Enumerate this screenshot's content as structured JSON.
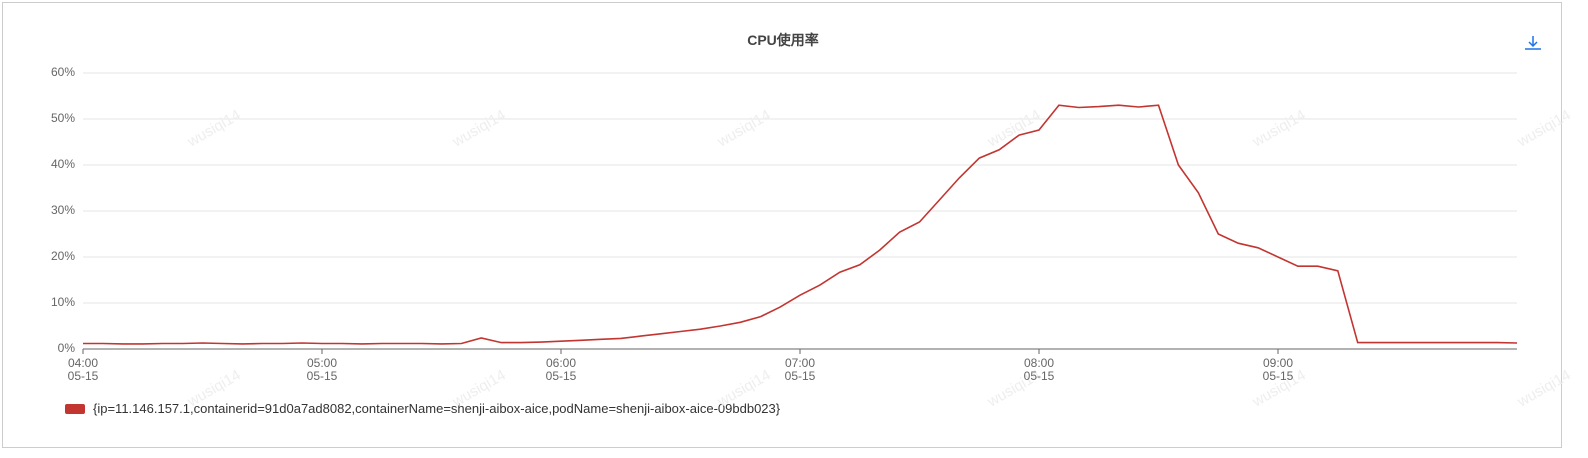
{
  "chart_data": {
    "type": "line",
    "title": "CPU使用率",
    "watermark": "wusiqi14",
    "x": [
      "05-15 04:00",
      "05-15 04:05",
      "05-15 04:10",
      "05-15 04:15",
      "05-15 04:20",
      "05-15 04:25",
      "05-15 04:30",
      "05-15 04:35",
      "05-15 04:40",
      "05-15 04:45",
      "05-15 04:50",
      "05-15 04:55",
      "05-15 05:00",
      "05-15 05:05",
      "05-15 05:10",
      "05-15 05:15",
      "05-15 05:20",
      "05-15 05:25",
      "05-15 05:30",
      "05-15 05:35",
      "05-15 05:40",
      "05-15 05:45",
      "05-15 05:50",
      "05-15 05:55",
      "05-15 06:00",
      "05-15 06:05",
      "05-15 06:10",
      "05-15 06:15",
      "05-15 06:20",
      "05-15 06:25",
      "05-15 06:30",
      "05-15 06:35",
      "05-15 06:40",
      "05-15 06:45",
      "05-15 06:50",
      "05-15 06:55",
      "05-15 07:00",
      "05-15 07:05",
      "05-15 07:10",
      "05-15 07:15",
      "05-15 07:20",
      "05-15 07:25",
      "05-15 07:30",
      "05-15 07:35",
      "05-15 07:40",
      "05-15 07:45",
      "05-15 07:50",
      "05-15 07:55",
      "05-15 08:00",
      "05-15 08:05",
      "05-15 08:10",
      "05-15 08:15",
      "05-15 08:20",
      "05-15 08:25",
      "05-15 08:30",
      "05-15 08:35",
      "05-15 08:40",
      "05-15 08:45",
      "05-15 08:50",
      "05-15 08:55",
      "05-15 09:00",
      "05-15 09:05",
      "05-15 09:10",
      "05-15 09:15",
      "05-15 09:20",
      "05-15 09:25",
      "05-15 09:30",
      "05-15 09:35",
      "05-15 09:40",
      "05-15 09:45",
      "05-15 09:50",
      "05-15 09:55",
      "05-15 10:00"
    ],
    "series": [
      {
        "name": "{ip=11.146.157.1,containerid=91d0a7ad8082,containerName=shenji-aibox-aice,podName=shenji-aibox-aice-09bdb023}",
        "color": "#c23531",
        "values": [
          1.2,
          1.2,
          1.1,
          1.1,
          1.2,
          1.2,
          1.3,
          1.2,
          1.1,
          1.2,
          1.2,
          1.3,
          1.2,
          1.2,
          1.1,
          1.2,
          1.2,
          1.2,
          1.1,
          1.2,
          2.4,
          1.4,
          1.4,
          1.5,
          1.7,
          1.9,
          2.1,
          2.3,
          2.8,
          3.3,
          3.8,
          4.3,
          5,
          5.8,
          7,
          9.1,
          11.7,
          13.9,
          16.7,
          18.3,
          21.5,
          25.4,
          27.6,
          32.4,
          37.2,
          41.5,
          43.3,
          46.5,
          47.6,
          53,
          52.5,
          52.7,
          53,
          52.6,
          53,
          40,
          34,
          25,
          23,
          22,
          20,
          18,
          18,
          17,
          1.4,
          1.4,
          1.4,
          1.4,
          1.4,
          1.4,
          1.4,
          1.4,
          1.3
        ]
      }
    ],
    "xlim": [
      "05-15 04:00",
      "05-15 10:00"
    ],
    "xticks": [
      {
        "value": "05-15 04:00",
        "label": "04:00\n05-15"
      },
      {
        "value": "05-15 05:00",
        "label": "05:00\n05-15"
      },
      {
        "value": "05-15 06:00",
        "label": "06:00\n05-15"
      },
      {
        "value": "05-15 07:00",
        "label": "07:00\n05-15"
      },
      {
        "value": "05-15 08:00",
        "label": "08:00\n05-15"
      },
      {
        "value": "05-15 09:00",
        "label": "09:00\n05-15"
      }
    ],
    "ylim": [
      0,
      60
    ],
    "yticks": [
      {
        "value": 0,
        "label": "0%"
      },
      {
        "value": 10,
        "label": "10%"
      },
      {
        "value": 20,
        "label": "20%"
      },
      {
        "value": 30,
        "label": "30%"
      },
      {
        "value": 40,
        "label": "40%"
      },
      {
        "value": 50,
        "label": "50%"
      },
      {
        "value": 60,
        "label": "60%"
      }
    ],
    "grid": true
  }
}
